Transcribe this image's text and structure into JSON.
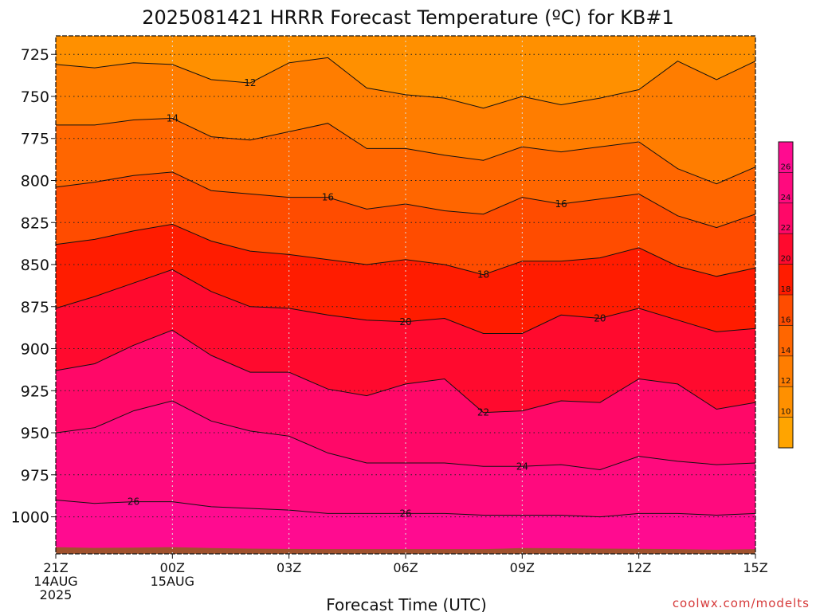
{
  "chart_data": {
    "type": "contour",
    "title": "2025081421 HRRR Forecast Temperature (ºC) for KB#1",
    "xlabel": "Forecast Time (UTC)",
    "ylabel": "",
    "credit": "coolwx.com/modelts",
    "x_hours": [
      0,
      1,
      2,
      3,
      4,
      5,
      6,
      7,
      8,
      9,
      10,
      11,
      12,
      13,
      14,
      15,
      16,
      17,
      18
    ],
    "xlim": [
      0,
      18
    ],
    "ylim": [
      1022,
      714
    ],
    "y_reversed": true,
    "x_ticks": [
      {
        "hour": 0,
        "lines": [
          "21Z",
          "14AUG",
          "2025"
        ]
      },
      {
        "hour": 3,
        "lines": [
          "00Z",
          "15AUG"
        ]
      },
      {
        "hour": 6,
        "lines": [
          "03Z"
        ]
      },
      {
        "hour": 9,
        "lines": [
          "06Z"
        ]
      },
      {
        "hour": 12,
        "lines": [
          "09Z"
        ]
      },
      {
        "hour": 15,
        "lines": [
          "12Z"
        ]
      },
      {
        "hour": 18,
        "lines": [
          "15Z"
        ]
      }
    ],
    "y_ticks": [
      725,
      750,
      775,
      800,
      825,
      850,
      875,
      900,
      925,
      950,
      975,
      1000
    ],
    "surface_pressure_hpa": [
      1018,
      1018.5,
      1018.3,
      1018,
      1018.6,
      1018.9,
      1019.1,
      1019.2,
      1019.2,
      1019.2,
      1019.2,
      1019.2,
      1018.6,
      1018.7,
      1018.9,
      1019,
      1019.2,
      1019.6,
      1019.2
    ],
    "isotherms": [
      {
        "value": 12,
        "pressure_hpa": [
          731,
          733,
          730,
          731,
          740,
          742,
          730,
          727,
          745,
          749,
          751,
          757,
          750,
          755,
          751,
          746,
          729,
          740,
          729
        ],
        "labels": [
          {
            "hour": 5,
            "text": "12"
          }
        ]
      },
      {
        "hour_note": "",
        "value": 14,
        "pressure_hpa": [
          767,
          767,
          764,
          763,
          774,
          776,
          771,
          766,
          781,
          781,
          785,
          788,
          780,
          783,
          780,
          777,
          793,
          802,
          792
        ],
        "labels": [
          {
            "hour": 3,
            "text": "14"
          }
        ]
      },
      {
        "value": 16,
        "pressure_hpa": [
          804,
          801,
          797,
          795,
          806,
          808,
          810,
          810,
          817,
          814,
          818,
          820,
          810,
          814,
          811,
          808,
          821,
          828,
          820
        ],
        "labels": [
          {
            "hour": 7,
            "text": "16"
          },
          {
            "hour": 13,
            "text": "16"
          }
        ]
      },
      {
        "value": 18,
        "pressure_hpa": [
          838,
          835,
          830,
          826,
          836,
          842,
          844,
          847,
          850,
          847,
          850,
          856,
          848,
          848,
          846,
          840,
          851,
          857,
          852
        ],
        "labels": [
          {
            "hour": 11,
            "text": "18"
          }
        ]
      },
      {
        "value": 20,
        "pressure_hpa": [
          876,
          869,
          861,
          853,
          866,
          875,
          876,
          880,
          883,
          884,
          882,
          891,
          891,
          880,
          882,
          876,
          883,
          890,
          888
        ],
        "labels": [
          {
            "hour": 9,
            "text": "20"
          },
          {
            "hour": 14,
            "text": "20"
          }
        ]
      },
      {
        "value": 22,
        "pressure_hpa": [
          913,
          909,
          898,
          889,
          904,
          914,
          914,
          924,
          928,
          921,
          918,
          938,
          937,
          931,
          932,
          918,
          921,
          936,
          932
        ],
        "labels": [
          {
            "hour": 11,
            "text": "22"
          }
        ]
      },
      {
        "value": 24,
        "pressure_hpa": [
          950,
          947,
          937,
          931,
          943,
          949,
          952,
          962,
          968,
          968,
          968,
          970,
          970,
          969,
          972,
          964,
          967,
          969,
          968
        ],
        "labels": [
          {
            "hour": 12,
            "text": "24"
          }
        ]
      },
      {
        "value": 26,
        "pressure_hpa": [
          990,
          992,
          991,
          991,
          994,
          995,
          996,
          998,
          998,
          998,
          998,
          999,
          999,
          999,
          1000,
          998,
          998,
          999,
          998
        ],
        "labels": [
          {
            "hour": 2,
            "text": "26"
          },
          {
            "hour": 9,
            "text": "26"
          }
        ]
      }
    ],
    "fill_levels": [
      {
        "from": null,
        "to": 10,
        "color": "#ffa400"
      },
      {
        "from": 10,
        "to": 12,
        "color": "#ff9000"
      },
      {
        "from": 12,
        "to": 14,
        "color": "#ff7d00"
      },
      {
        "from": 14,
        "to": 16,
        "color": "#ff6600"
      },
      {
        "from": 16,
        "to": 18,
        "color": "#ff4c00"
      },
      {
        "from": 18,
        "to": 20,
        "color": "#ff1c00"
      },
      {
        "from": 20,
        "to": 22,
        "color": "#ff0a2e"
      },
      {
        "from": 22,
        "to": 24,
        "color": "#ff0868"
      },
      {
        "from": 24,
        "to": 26,
        "color": "#ff0a7e"
      },
      {
        "from": 26,
        "to": null,
        "color": "#ff0b90"
      }
    ],
    "colorbar_labels": [
      "26",
      "24",
      "22",
      "20",
      "18",
      "16",
      "14",
      "12",
      "10"
    ],
    "ground_color": "#a0522d"
  }
}
